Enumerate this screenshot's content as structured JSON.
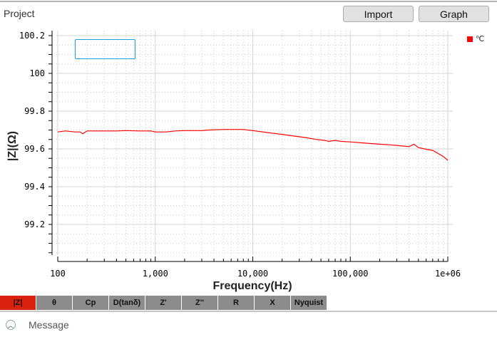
{
  "header": {
    "project_label": "Project",
    "import_label": "Import",
    "graph_label": "Graph"
  },
  "tabs": [
    {
      "label": "|Z|",
      "active": true
    },
    {
      "label": "θ"
    },
    {
      "label": "Cp"
    },
    {
      "label": "D(tanδ)"
    },
    {
      "label": "Z'"
    },
    {
      "label": "Z''"
    },
    {
      "label": "R"
    },
    {
      "label": "X"
    },
    {
      "label": "Nyquist"
    }
  ],
  "message": {
    "label": "Message",
    "icon": "chevron-up-circle-icon"
  },
  "colors": {
    "series": "#ff0000",
    "active_tab": "#d9230f",
    "tab": "#8c8c8c"
  },
  "chart_data": {
    "type": "line",
    "xlabel": "Frequency(Hz)",
    "ylabel": "|Z|(Ω)",
    "xscale": "log",
    "xlim": [
      100,
      1000000
    ],
    "ylim": [
      99.04,
      100.22
    ],
    "xticks": [
      {
        "v": 100,
        "label": "100"
      },
      {
        "v": 1000,
        "label": "1,000"
      },
      {
        "v": 10000,
        "label": "10,000"
      },
      {
        "v": 100000,
        "label": "100,000"
      },
      {
        "v": 1000000,
        "label": "1e+06"
      }
    ],
    "yticks": [
      {
        "v": 99.2,
        "label": "99.2"
      },
      {
        "v": 99.4,
        "label": "99.4"
      },
      {
        "v": 99.6,
        "label": "99.6"
      },
      {
        "v": 99.8,
        "label": "99.8"
      },
      {
        "v": 100,
        "label": "100"
      },
      {
        "v": 100.2,
        "label": "100.2"
      }
    ],
    "grid": true,
    "legend": {
      "position": "top-right",
      "entries": [
        "℃"
      ]
    },
    "series": [
      {
        "name": "℃",
        "points": [
          [
            100,
            99.69
          ],
          [
            120,
            99.695
          ],
          [
            150,
            99.69
          ],
          [
            170,
            99.69
          ],
          [
            180,
            99.68
          ],
          [
            200,
            99.695
          ],
          [
            300,
            99.695
          ],
          [
            400,
            99.695
          ],
          [
            500,
            99.697
          ],
          [
            700,
            99.695
          ],
          [
            900,
            99.695
          ],
          [
            1000,
            99.69
          ],
          [
            1300,
            99.69
          ],
          [
            1600,
            99.695
          ],
          [
            2000,
            99.697
          ],
          [
            3000,
            99.697
          ],
          [
            3500,
            99.7
          ],
          [
            5000,
            99.703
          ],
          [
            8000,
            99.703
          ],
          [
            10000,
            99.697
          ],
          [
            15000,
            99.685
          ],
          [
            20000,
            99.677
          ],
          [
            25000,
            99.67
          ],
          [
            35000,
            99.66
          ],
          [
            45000,
            99.65
          ],
          [
            55000,
            99.645
          ],
          [
            60000,
            99.64
          ],
          [
            70000,
            99.645
          ],
          [
            80000,
            99.64
          ],
          [
            100000,
            99.637
          ],
          [
            150000,
            99.63
          ],
          [
            200000,
            99.625
          ],
          [
            250000,
            99.622
          ],
          [
            350000,
            99.615
          ],
          [
            400000,
            99.612
          ],
          [
            450000,
            99.625
          ],
          [
            500000,
            99.607
          ],
          [
            600000,
            99.598
          ],
          [
            700000,
            99.592
          ],
          [
            800000,
            99.575
          ],
          [
            900000,
            99.56
          ],
          [
            1000000,
            99.54
          ]
        ]
      }
    ]
  }
}
